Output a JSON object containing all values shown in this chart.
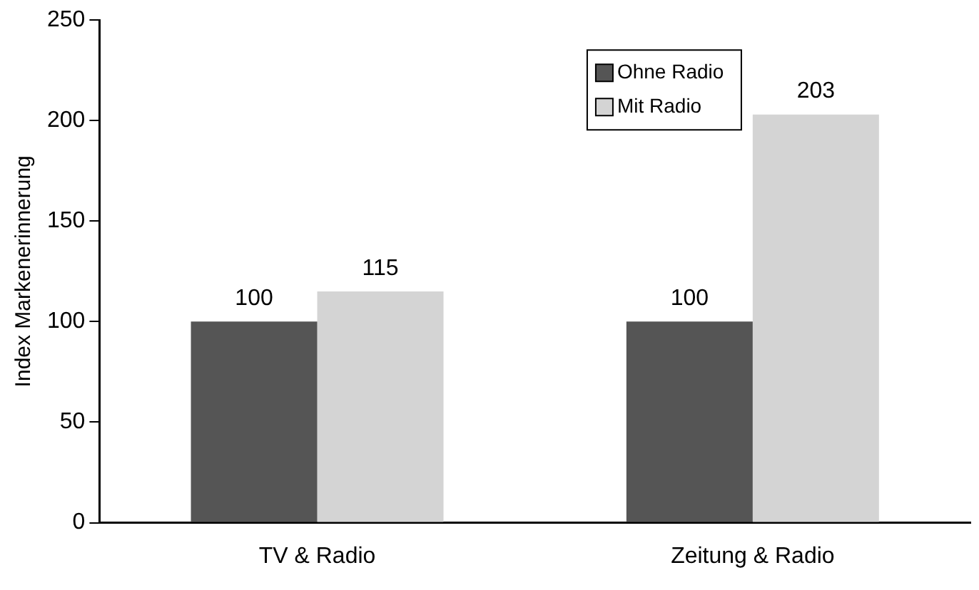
{
  "chart_data": {
    "type": "bar",
    "ylabel": "Index Markenerinnerung",
    "categories": [
      "TV & Radio",
      "Zeitung & Radio"
    ],
    "series": [
      {
        "name": "Ohne Radio",
        "color": "#555555",
        "values": [
          100,
          100
        ]
      },
      {
        "name": "Mit Radio",
        "color": "#d4d4d4",
        "values": [
          115,
          203
        ]
      }
    ],
    "ylim": [
      0,
      250
    ],
    "yticks": [
      0,
      50,
      100,
      150,
      200,
      250
    ],
    "grid": false,
    "legend": "top",
    "data_labels": true
  }
}
